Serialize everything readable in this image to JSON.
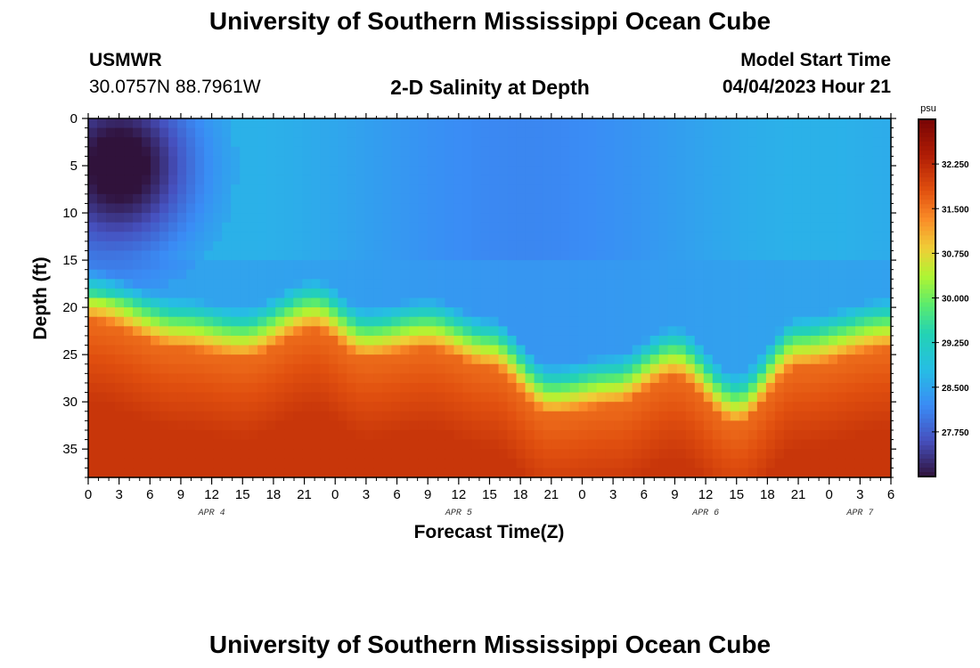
{
  "header": {
    "title": "University of Southern Mississippi Ocean Cube",
    "station": "USMWR",
    "coords": "30.0757N  88.7961W",
    "subtitle": "2-D Salinity at Depth",
    "model_label": "Model Start Time",
    "model_time": "04/04/2023 Hour 21"
  },
  "footer": {
    "title": "University of Southern Mississippi Ocean Cube"
  },
  "chart_data": {
    "type": "heatmap",
    "title": "2-D Salinity at Depth",
    "xlabel": "Forecast Time(Z)",
    "ylabel": "Depth (ft)",
    "x_ticks": [
      "0",
      "3",
      "6",
      "9",
      "12",
      "15",
      "18",
      "21",
      "0",
      "3",
      "6",
      "9",
      "12",
      "15",
      "18",
      "21",
      "0",
      "3",
      "6",
      "9",
      "12",
      "15",
      "18",
      "21",
      "0",
      "3",
      "6"
    ],
    "x_range_hours": [
      0,
      78
    ],
    "date_labels": [
      {
        "label": "APR 4",
        "hour": 12
      },
      {
        "label": "APR 5",
        "hour": 36
      },
      {
        "label": "APR 6",
        "hour": 60
      },
      {
        "label": "APR 7",
        "hour": 75
      }
    ],
    "y_ticks": [
      "0",
      "5",
      "10",
      "15",
      "20",
      "25",
      "30",
      "35"
    ],
    "y_range_ft": [
      0,
      38
    ],
    "colorbar": {
      "unit": "psu",
      "min": 27.0,
      "max": 33.0,
      "tick_labels": [
        "32.250",
        "31.500",
        "30.750",
        "30.000",
        "29.250",
        "28.500",
        "27.750"
      ],
      "tick_values": [
        32.25,
        31.5,
        30.75,
        30.0,
        29.25,
        28.5,
        27.75
      ]
    },
    "background_salinity_psu": 28.4,
    "halocline_depth_ft": [
      {
        "hour": 0,
        "depth": 16
      },
      {
        "hour": 9,
        "depth": 19
      },
      {
        "hour": 15,
        "depth": 20
      },
      {
        "hour": 22,
        "depth": 17
      },
      {
        "hour": 27,
        "depth": 20
      },
      {
        "hour": 33,
        "depth": 19
      },
      {
        "hour": 39,
        "depth": 21
      },
      {
        "hour": 45,
        "depth": 26
      },
      {
        "hour": 51,
        "depth": 25
      },
      {
        "hour": 57,
        "depth": 22
      },
      {
        "hour": 63,
        "depth": 27
      },
      {
        "hour": 69,
        "depth": 21
      },
      {
        "hour": 78,
        "depth": 19
      }
    ],
    "fresh_lens": {
      "center_hour": 3,
      "center_depth_ft": 5,
      "extent_hours": 9,
      "extent_depth_ft": 11,
      "min_psu": 27.0
    }
  }
}
